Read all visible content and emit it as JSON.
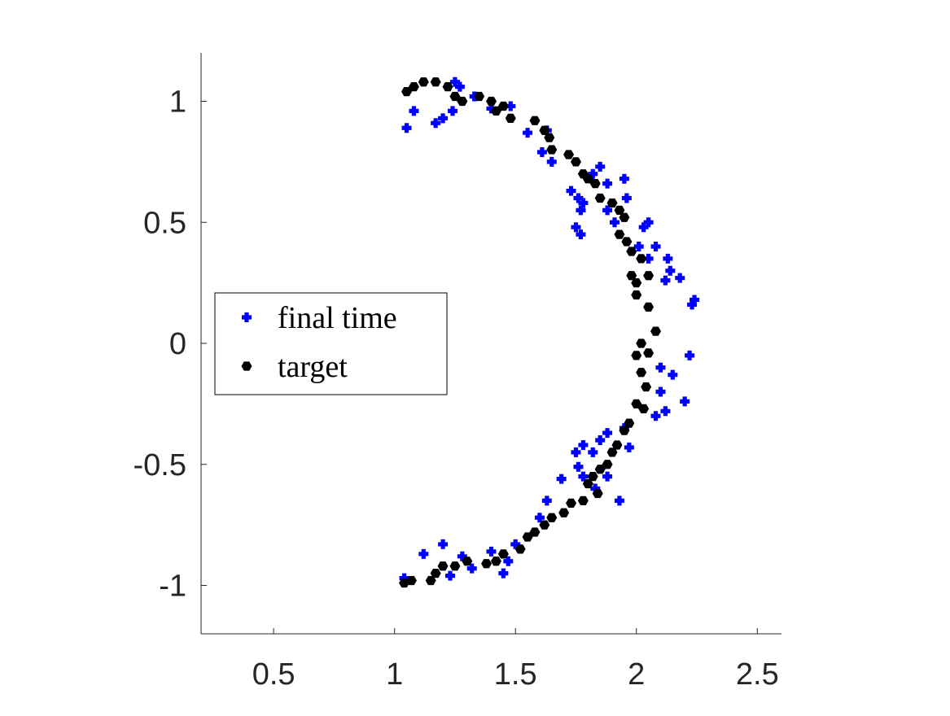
{
  "chart_data": {
    "type": "scatter",
    "xlim": [
      0.2,
      2.6
    ],
    "ylim": [
      -1.2,
      1.2
    ],
    "xticks": [
      0.5,
      1,
      1.5,
      2,
      2.5
    ],
    "yticks": [
      -1,
      -0.5,
      0,
      0.5,
      1
    ],
    "legend": "west",
    "series": [
      {
        "name": "final time",
        "color": "#0000ff",
        "marker": "plus",
        "x": [
          1.05,
          1.08,
          1.17,
          1.2,
          1.24,
          1.25,
          1.27,
          1.33,
          1.4,
          1.48,
          1.55,
          1.63,
          1.61,
          1.65,
          1.73,
          1.76,
          1.78,
          1.75,
          1.77,
          1.77,
          1.82,
          1.85,
          1.88,
          1.88,
          1.91,
          1.95,
          1.96,
          2.03,
          2.05,
          2.01,
          2.08,
          2.05,
          2.13,
          2.14,
          2.18,
          2.12,
          2.23,
          2.24,
          2.22,
          2.15,
          2.1,
          2.1,
          2.2,
          2.12,
          2.08,
          1.95,
          1.97,
          1.88,
          1.85,
          1.82,
          1.78,
          1.75,
          1.76,
          1.78,
          1.83,
          1.88,
          1.93,
          1.69,
          1.63,
          1.6,
          1.5,
          1.47,
          1.45,
          1.4,
          1.32,
          1.28,
          1.23,
          1.2,
          1.12,
          1.04
        ],
        "values": [
          0.89,
          0.96,
          0.91,
          0.93,
          0.96,
          1.08,
          1.06,
          1.02,
          0.97,
          0.98,
          0.87,
          0.88,
          0.79,
          0.75,
          0.63,
          0.6,
          0.58,
          0.48,
          0.45,
          0.55,
          0.7,
          0.73,
          0.66,
          0.55,
          0.5,
          0.68,
          0.6,
          0.48,
          0.5,
          0.4,
          0.4,
          0.35,
          0.35,
          0.3,
          0.27,
          0.26,
          0.16,
          0.18,
          -0.05,
          -0.13,
          -0.1,
          -0.2,
          -0.24,
          -0.28,
          -0.3,
          -0.35,
          -0.43,
          -0.37,
          -0.4,
          -0.45,
          -0.42,
          -0.45,
          -0.51,
          -0.55,
          -0.6,
          -0.55,
          -0.65,
          -0.56,
          -0.65,
          -0.72,
          -0.83,
          -0.9,
          -0.95,
          -0.86,
          -0.93,
          -0.88,
          -0.96,
          -0.83,
          -0.87,
          -0.97
        ]
      },
      {
        "name": "target",
        "color": "#000000",
        "marker": "hexagon",
        "x": [
          1.05,
          1.08,
          1.12,
          1.17,
          1.22,
          1.25,
          1.28,
          1.35,
          1.4,
          1.42,
          1.45,
          1.48,
          1.58,
          1.62,
          1.64,
          1.65,
          1.72,
          1.75,
          1.78,
          1.8,
          1.83,
          1.85,
          1.9,
          1.93,
          1.95,
          1.93,
          1.96,
          1.98,
          2.02,
          1.98,
          2.0,
          2.05,
          2.0,
          2.05,
          2.08,
          2.02,
          2.05,
          2.0,
          2.02,
          2.04,
          2.0,
          2.03,
          1.97,
          1.95,
          1.92,
          1.9,
          1.88,
          1.85,
          1.82,
          1.8,
          1.84,
          1.78,
          1.73,
          1.7,
          1.65,
          1.62,
          1.58,
          1.55,
          1.52,
          1.45,
          1.42,
          1.38,
          1.3,
          1.25,
          1.2,
          1.17,
          1.15,
          1.07,
          1.04
        ],
        "values": [
          1.04,
          1.06,
          1.08,
          1.08,
          1.06,
          1.02,
          1.0,
          1.02,
          1.0,
          0.96,
          0.98,
          0.93,
          0.92,
          0.88,
          0.85,
          0.8,
          0.78,
          0.75,
          0.7,
          0.68,
          0.66,
          0.6,
          0.58,
          0.55,
          0.52,
          0.45,
          0.42,
          0.38,
          0.35,
          0.28,
          0.25,
          0.28,
          0.2,
          0.15,
          0.05,
          0.0,
          -0.04,
          -0.05,
          -0.12,
          -0.18,
          -0.25,
          -0.27,
          -0.33,
          -0.36,
          -0.42,
          -0.45,
          -0.5,
          -0.52,
          -0.55,
          -0.58,
          -0.62,
          -0.65,
          -0.66,
          -0.7,
          -0.72,
          -0.75,
          -0.78,
          -0.8,
          -0.85,
          -0.87,
          -0.9,
          -0.91,
          -0.9,
          -0.92,
          -0.92,
          -0.95,
          -0.98,
          -0.98,
          -0.99
        ]
      }
    ]
  }
}
